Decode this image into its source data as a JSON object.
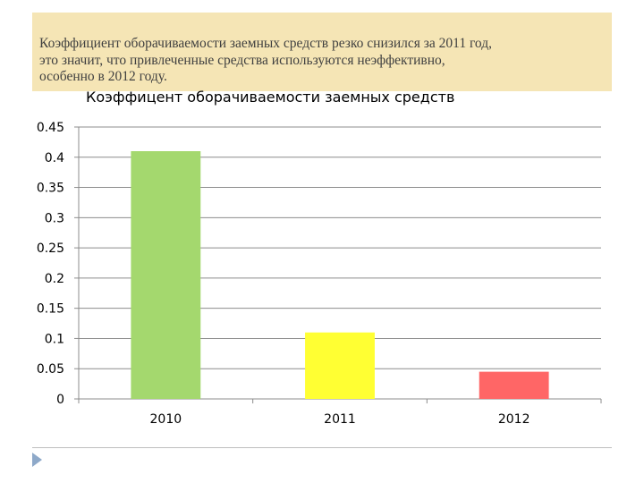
{
  "note": {
    "lines": [
      "Коэффициент оборачиваемости заемных средств резко снизился за 2011 год,",
      "это значит, что привлеченные средства используются неэффективно,",
      "особенно в 2012 году."
    ]
  },
  "chart_data": {
    "type": "bar",
    "title": "Коэффицент оборачиваемости заемных средств",
    "categories": [
      "2010",
      "2011",
      "2012"
    ],
    "values": [
      0.41,
      0.11,
      0.045
    ],
    "bar_colors": [
      "#a4d86e",
      "#ffff33",
      "#ff6666"
    ],
    "ylim": [
      0,
      0.45
    ],
    "yticks": [
      "0",
      "0.05",
      "0.1",
      "0.15",
      "0.2",
      "0.25",
      "0.3",
      "0.35",
      "0.4",
      "0.45"
    ],
    "grid": true,
    "xlabel": "",
    "ylabel": ""
  }
}
